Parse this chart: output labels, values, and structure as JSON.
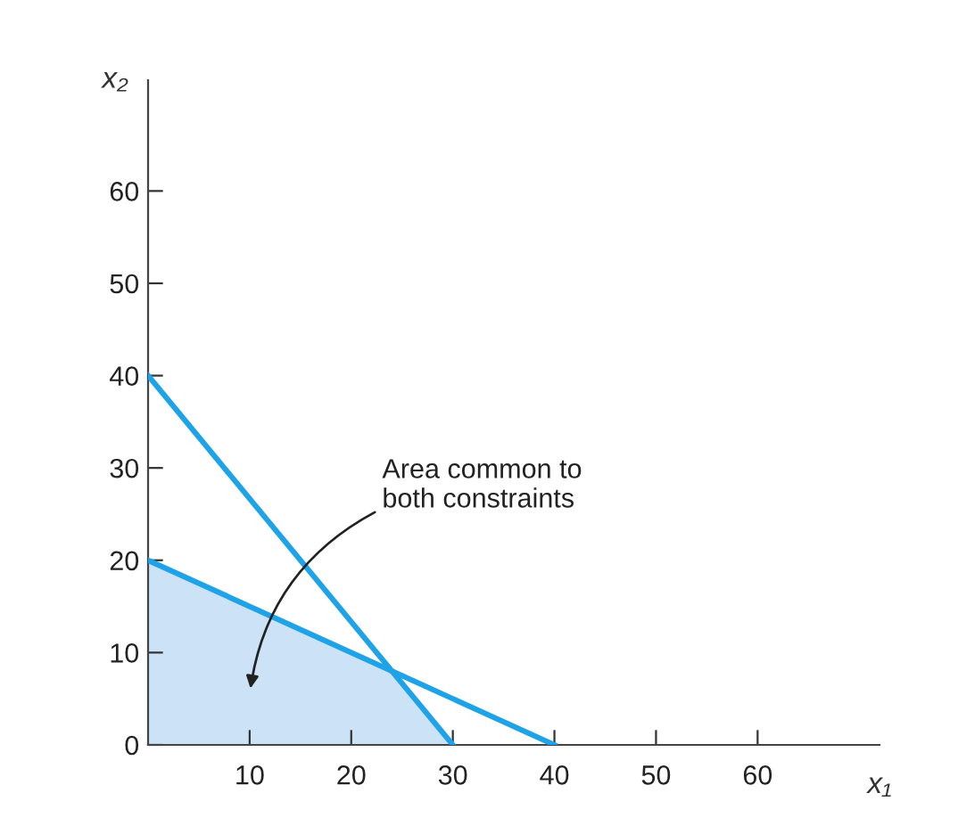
{
  "chart_data": {
    "type": "line",
    "xlabel": "x₁",
    "ylabel": "x₂",
    "xlim": [
      0,
      72
    ],
    "ylim": [
      0,
      72
    ],
    "xticks": [
      10,
      20,
      30,
      40,
      50,
      60
    ],
    "yticks": [
      0,
      10,
      20,
      30,
      40,
      50,
      60
    ],
    "grid": false,
    "legend": false,
    "marker": "none",
    "line_style": "solid",
    "series": [
      {
        "type": "area",
        "color": "#cce3f7",
        "x": [
          0,
          24,
          30
        ],
        "values": [
          20,
          8,
          0
        ]
      },
      {
        "color": "#1fa3e8",
        "x": [
          0,
          30
        ],
        "values": [
          40,
          0
        ]
      },
      {
        "color": "#1fa3e8",
        "x": [
          0,
          40
        ],
        "values": [
          20,
          0
        ]
      }
    ],
    "annotations": [
      "Area common to\nboth constraints"
    ]
  }
}
